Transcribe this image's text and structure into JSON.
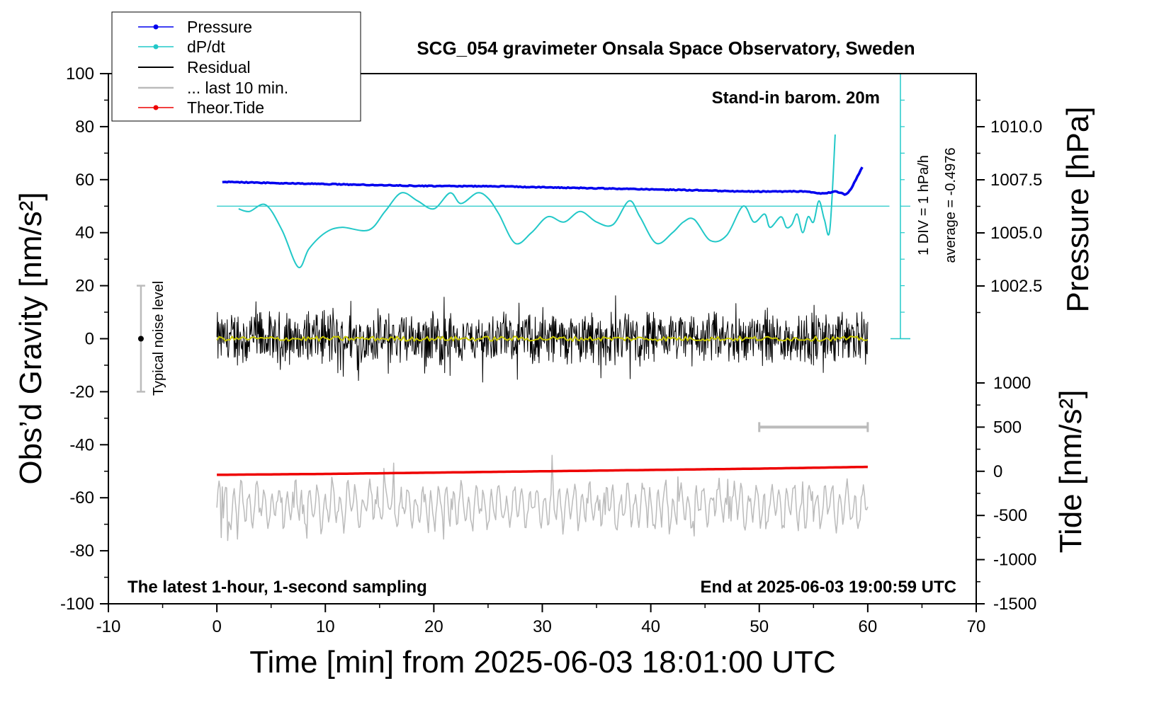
{
  "chart_data": {
    "type": "line",
    "title": "SCG_054 gravimeter Onsala Space Observatory, Sweden",
    "xlabel": "Time [min] from 2025-06-03 18:01:00 UTC",
    "ylabel": "Obs’d Gravity [nm/s²]",
    "y2label": "Pressure [hPa]",
    "y3label": "Tide [nm/s²]",
    "xlim": [
      -10,
      70
    ],
    "ylim": [
      -100,
      100
    ],
    "pressure_lim": [
      1000.0,
      1012.5
    ],
    "tide_lim": [
      -1500,
      1000
    ],
    "x_ticks": [
      "-10",
      "0",
      "10",
      "20",
      "30",
      "40",
      "50",
      "60",
      "70"
    ],
    "y_ticks": [
      "100",
      "80",
      "60",
      "40",
      "20",
      "0",
      "-20",
      "-40",
      "-60",
      "-80",
      "-100"
    ],
    "pressure_ticks": [
      "1010.0",
      "1007.5",
      "1005.0",
      "1002.5"
    ],
    "tide_ticks": [
      "1000",
      "500",
      "0",
      "-500",
      "-1000",
      "-1500"
    ],
    "grid": false,
    "legend_position": "top-left",
    "legend": [
      "Pressure",
      "dP/dt",
      "Residual",
      "... last 10 min.",
      "Theor.Tide"
    ],
    "annotations": {
      "barometer": "Stand-in barom. 20m",
      "latest": "The latest 1-hour, 1-second sampling",
      "end": "End at 2025-06-03 19:00:59 UTC",
      "div": "1 DIV = 1 hPa/h",
      "average": "average = -0.4976",
      "noise": "Typical noise level"
    },
    "colors": {
      "pressure": "#0000ee",
      "dpdt": "#22c8c8",
      "residual": "#000000",
      "last10": "#bbbbbb",
      "tide": "#ee0000",
      "smooth": "#c8c800"
    },
    "series": [
      {
        "name": "Pressure",
        "axis": "pressure",
        "x": [
          0.5,
          5,
          10,
          15,
          20,
          25,
          30,
          35,
          40,
          45,
          48,
          50,
          52,
          54,
          55,
          56,
          57,
          58,
          58.5,
          59,
          59.5
        ],
        "values": [
          1007.4,
          1007.35,
          1007.3,
          1007.25,
          1007.2,
          1007.2,
          1007.15,
          1007.1,
          1007.05,
          1007.0,
          1006.95,
          1006.95,
          1006.95,
          1006.95,
          1006.9,
          1006.85,
          1006.95,
          1006.8,
          1007.1,
          1007.6,
          1008.1
        ]
      },
      {
        "name": "dP/dt",
        "axis": "gravity",
        "x": [
          2,
          3,
          4.5,
          6,
          7.5,
          8.5,
          10,
          11.5,
          14,
          15.5,
          17,
          18.5,
          20,
          21.5,
          22.5,
          24,
          25,
          26,
          27.5,
          29,
          30.5,
          32,
          33.5,
          35,
          36.5,
          38,
          39,
          40.5,
          42,
          43,
          44,
          45.5,
          47,
          48.5,
          49.5,
          50.5,
          51,
          52,
          52.5,
          53,
          53.5,
          54,
          54.5,
          55,
          55.5,
          56,
          56.5,
          57
        ],
        "values": [
          49,
          48,
          50.5,
          41,
          27,
          34,
          40,
          42,
          41,
          48,
          55,
          52,
          49,
          55,
          51,
          55,
          53,
          47,
          36,
          40,
          46,
          44,
          48,
          44,
          43,
          52,
          46,
          36,
          40,
          44,
          45,
          37,
          39,
          50,
          44,
          47,
          42,
          46,
          42,
          43,
          47,
          40,
          46,
          44,
          52,
          45,
          41,
          77
        ]
      },
      {
        "name": "Residual",
        "axis": "gravity",
        "x": [
          0,
          60
        ],
        "values": [
          0,
          0
        ]
      },
      {
        "name": "... last 10 min.",
        "axis": "gravity",
        "x": [
          0,
          60
        ],
        "values": [
          -63,
          -63
        ]
      },
      {
        "name": "Theor.Tide",
        "axis": "tide",
        "x": [
          0,
          10,
          20,
          30,
          40,
          50,
          60
        ],
        "values": [
          -40,
          -30,
          -15,
          0,
          15,
          30,
          50
        ]
      }
    ],
    "typical_noise": {
      "x": -7,
      "center": 0,
      "range": [
        -20,
        20
      ]
    },
    "tide_bar": {
      "x": [
        50,
        60
      ],
      "value": 500
    }
  }
}
